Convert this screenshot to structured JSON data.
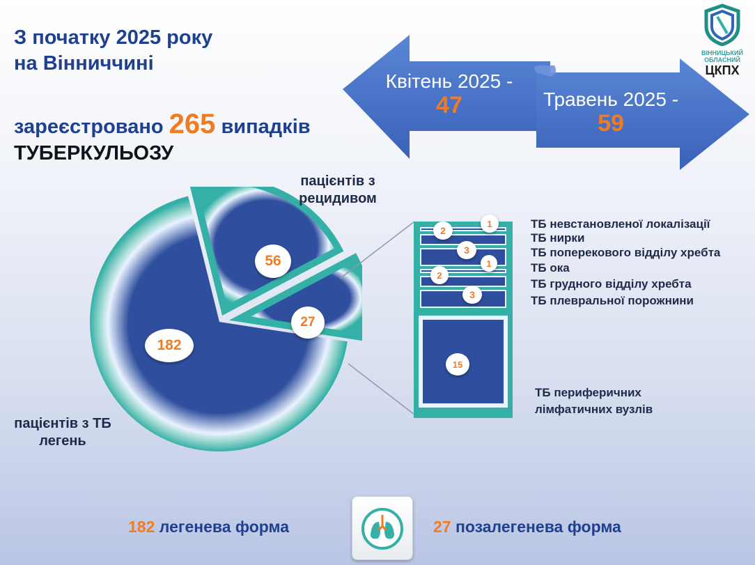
{
  "header": {
    "title_line1": "З початку 2025 року",
    "title_line2": "на Вінниччині",
    "registered_prefix": "зареєстровано",
    "registered_count": "265",
    "registered_suffix": "випадків",
    "disease": "ТУБЕРКУЛЬОЗУ"
  },
  "logo": {
    "line1": "ВІННИЦЬКИЙ",
    "line2": "ОБЛАСНИЙ",
    "line3": "ЦКПХ"
  },
  "arrows": {
    "left_label": "Квітень 2025 -",
    "left_value": "47",
    "right_label": "Травень 2025 -",
    "right_value": "59"
  },
  "labels": {
    "relapse": "пацієнтів з рецидивом",
    "lung": "пацієнтів з ТБ легень",
    "lymph": "ТБ периферичних лімфатичних вузлів"
  },
  "bottom": {
    "lung_value": "182",
    "lung_text": "легенева форма",
    "extra_value": "27",
    "extra_text": "позалегенева форма"
  },
  "colors": {
    "navy": "#2f4f9e",
    "teal": "#35b0a6",
    "orange": "#f07b20",
    "arrow_blue": "#4a73c7"
  },
  "chart_data": [
    {
      "type": "pie",
      "categories": [
        "пацієнтів з ТБ легень",
        "пацієнтів з рецидивом",
        "позалегенева форма"
      ],
      "values": [
        182,
        56,
        27
      ]
    },
    {
      "type": "bar",
      "categories": [
        "ТБ невстановленої локалізації",
        "ТБ нирки",
        "ТБ поперекового відділу хребта",
        "ТБ ока",
        "ТБ грудного відділу хребта",
        "ТБ плевральної порожнини",
        "ТБ периферичних лімфатичних вузлів"
      ],
      "values": [
        1,
        2,
        3,
        1,
        2,
        3,
        15
      ]
    }
  ]
}
